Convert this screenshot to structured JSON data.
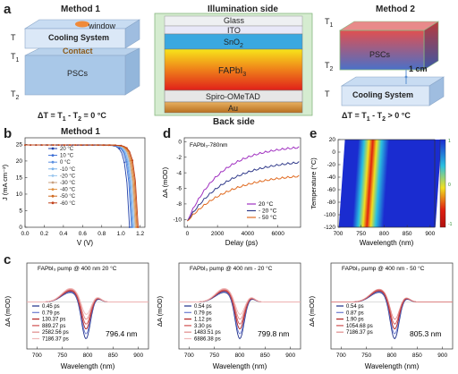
{
  "panel_a": {
    "label": "a",
    "method1": {
      "title": "Method 1",
      "window": "window",
      "cooling": "Cooling System",
      "contact": "Contact",
      "pscs": "PSCs",
      "t_top": "T",
      "t1": "T",
      "t1_sub": "1",
      "t2": "T",
      "t2_sub": "2",
      "delta": "ΔT = T",
      "delta2": " - T",
      "delta3": " = 0 °C"
    },
    "center": {
      "title": "Illumination side",
      "layers": [
        "Glass",
        "ITO",
        "SnO",
        "FAPbI",
        "Spiro-OMeTAD",
        "Au"
      ],
      "layer_subs": [
        "",
        "",
        "2",
        "3",
        "",
        ""
      ],
      "bottom": "Back side"
    },
    "method2": {
      "title": "Method 2",
      "pscs": "PSCs",
      "cooling": "Cooling System",
      "distance": "1 cm",
      "t_bottom": "T",
      "delta3": " > 0 °C"
    }
  },
  "panel_b": {
    "label": "b",
    "title": "Method 1",
    "ylabel": "J (mA cm⁻²)",
    "xlabel": "V (V)",
    "legend": [
      "20 °C",
      "10 °C",
      "0 °C",
      "-10 °C",
      "-20 °C",
      "-30 °C",
      "-40 °C",
      "-50 °C",
      "-60 °C"
    ],
    "colors": [
      "#1f3fa8",
      "#3c6fd6",
      "#5a8fe0",
      "#7ab2ea",
      "#9bc7ee",
      "#c8a080",
      "#e09040",
      "#d06a20",
      "#c0401a"
    ],
    "xticks": [
      "0.0",
      "0.2",
      "0.4",
      "0.6",
      "0.8",
      "1.0",
      "1.2"
    ],
    "yticks": [
      "0",
      "5",
      "10",
      "15",
      "20",
      "25"
    ]
  },
  "panel_d": {
    "label": "d",
    "annotation": "FAPbI₃-780nm",
    "ylabel": "ΔA (mOD)",
    "xlabel": "Delay (ps)",
    "legend": [
      "20 °C",
      "- 20 °C",
      "- 50 °C"
    ],
    "colors": [
      "#a030c0",
      "#303a8a",
      "#e06a20"
    ],
    "xticks": [
      "0",
      "2000",
      "4000",
      "6000"
    ],
    "yticks": [
      "-10",
      "-8",
      "-6",
      "-4",
      "-2",
      "0"
    ]
  },
  "panel_e": {
    "label": "e",
    "ylabel": "Temperature (°C)",
    "xlabel": "Wavelength (nm)",
    "xticks": [
      "700",
      "750",
      "800",
      "850",
      "900"
    ],
    "yticks": [
      "20",
      "0",
      "-20",
      "-40",
      "-60",
      "-80",
      "-100",
      "-120"
    ],
    "colorbar": [
      "1",
      "0",
      "-1"
    ]
  },
  "panel_c": {
    "label": "c",
    "ylabel": "ΔA (mOD)",
    "xlabel": "Wavelength (nm)",
    "xticks": [
      "700",
      "750",
      "800",
      "850",
      "900"
    ],
    "plots": [
      {
        "title": "FAPbI₃ pump @ 400 nm 20 °C",
        "peak": "796.4 nm",
        "legend": [
          "0.45 ps",
          "0.79 ps",
          "130.37 ps",
          "889.27 ps",
          "2582.56 ps",
          "7186.37 ps"
        ]
      },
      {
        "title": "FAPbI₃ pump @ 400 nm - 20 °C",
        "peak": "799.8 nm",
        "legend": [
          "0.54 ps",
          "0.79 ps",
          "1.12 ps",
          "3.30 ps",
          "1483.51 ps",
          "6886.38 ps"
        ]
      },
      {
        "title": "FAPbI₃ pump @ 400 nm - 50 °C",
        "peak": "805.3 nm",
        "legend": [
          "0.54 ps",
          "0.87 ps",
          "1.90 ps",
          "1054.68 ps",
          "7186.37 ps"
        ]
      }
    ],
    "colors": [
      "#1f2f8a",
      "#6a7ad0",
      "#b02020",
      "#d05050",
      "#e08a8a",
      "#f0b8b8"
    ]
  }
}
